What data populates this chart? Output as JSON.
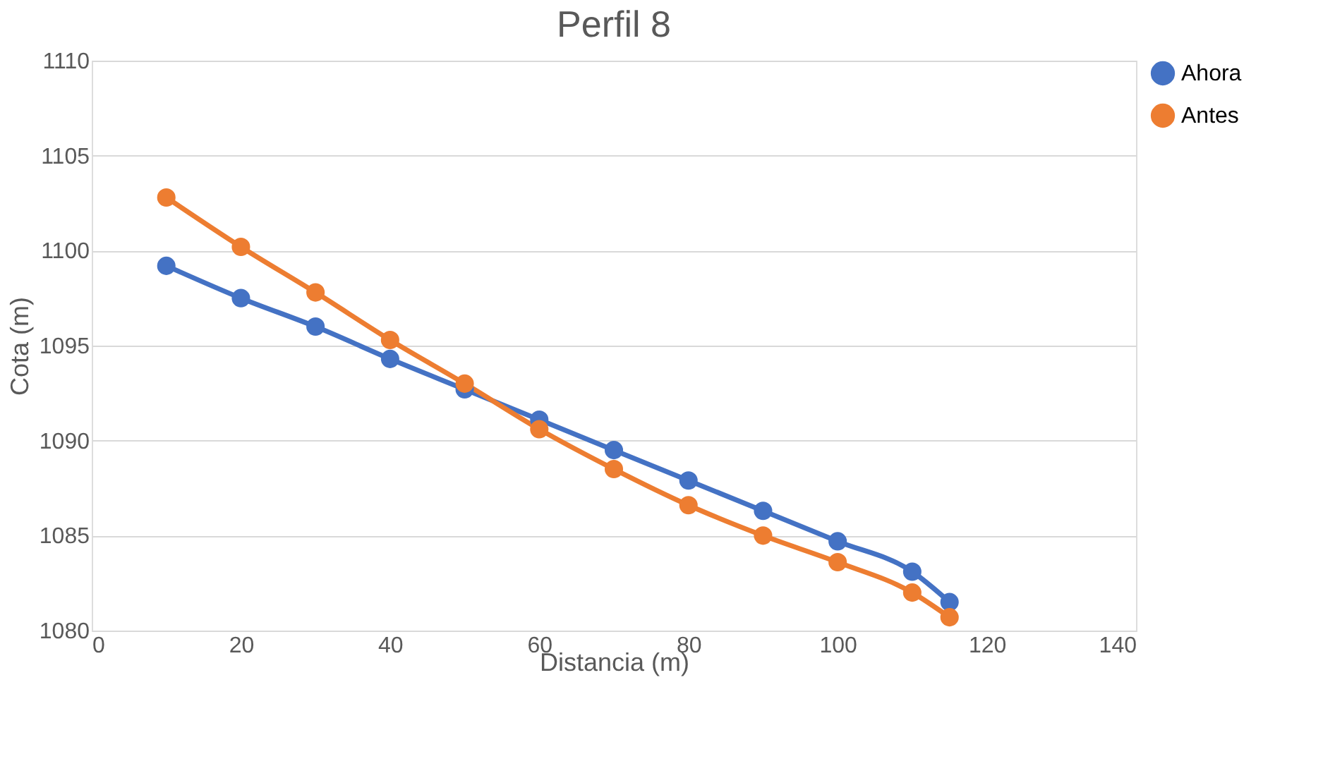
{
  "chart_data": {
    "type": "line",
    "title": "Perfil 8",
    "xlabel": "Distancia (m)",
    "ylabel": "Cota (m)",
    "x": [
      10,
      20,
      30,
      40,
      50,
      60,
      70,
      80,
      90,
      100,
      110,
      115
    ],
    "series": [
      {
        "name": "Ahora",
        "color": "#4472c4",
        "values": [
          1099.2,
          1097.5,
          1096.0,
          1094.3,
          1092.7,
          1091.1,
          1089.5,
          1087.9,
          1086.3,
          1084.7,
          1083.1,
          1081.5
        ]
      },
      {
        "name": "Antes",
        "color": "#ed7d31",
        "values": [
          1102.8,
          1100.2,
          1097.8,
          1095.3,
          1093.0,
          1090.6,
          1088.5,
          1086.6,
          1085.0,
          1083.6,
          1082.0,
          1080.7
        ]
      }
    ],
    "xlim": [
      0,
      140
    ],
    "xticks": [
      0,
      20,
      40,
      60,
      80,
      100,
      120,
      140
    ],
    "ylim": [
      1080,
      1110
    ],
    "yticks": [
      1080,
      1085,
      1090,
      1095,
      1100,
      1105,
      1110
    ],
    "grid": "y",
    "legend": "right",
    "marker": "circle",
    "line_style": "solid"
  }
}
